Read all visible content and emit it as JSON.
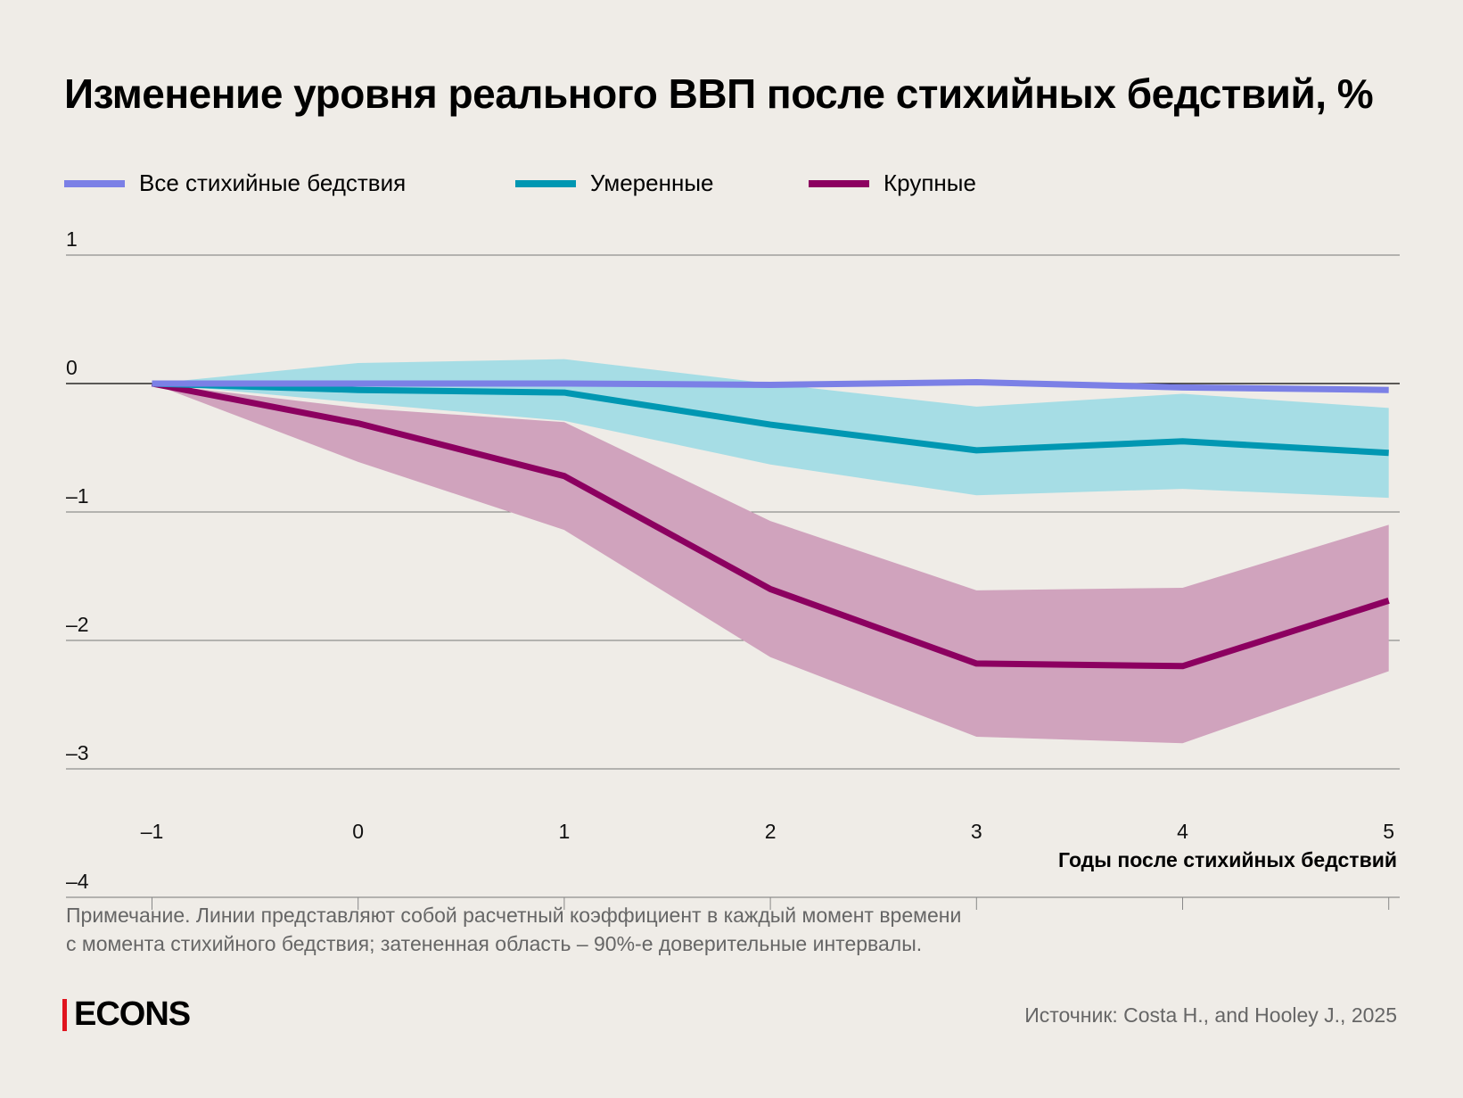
{
  "chart_data": {
    "type": "line",
    "title": "Изменение уровня реального ВВП после стихийных бедствий, %",
    "xlabel": "Годы после стихийных бедствий",
    "ylabel": "",
    "x": [
      -1,
      0,
      1,
      2,
      3,
      4,
      5
    ],
    "xlim": [
      -1.4,
      5.05
    ],
    "ylim": [
      -4,
      1
    ],
    "yticks": [
      1,
      0,
      -1,
      -2,
      -3,
      -4
    ],
    "ytick_labels": [
      "1",
      "0",
      "–1",
      "–2",
      "–3",
      "–4"
    ],
    "xtick_labels": [
      "–1",
      "0",
      "1",
      "2",
      "3",
      "4",
      "5"
    ],
    "grid": true,
    "legend_position": "top-left",
    "series": [
      {
        "name": "Все стихийные бедствия",
        "color": "#7b80e6",
        "values": [
          0,
          0,
          0,
          -0.01,
          0.01,
          -0.03,
          -0.05
        ]
      },
      {
        "name": "Умеренные",
        "color": "#0097b2",
        "band_color": "#9ddbe4",
        "values": [
          0,
          -0.05,
          -0.07,
          -0.32,
          -0.52,
          -0.45,
          -0.54
        ],
        "upper": [
          0,
          0.16,
          0.19,
          0.0,
          -0.18,
          -0.08,
          -0.19
        ],
        "lower": [
          0,
          -0.15,
          -0.29,
          -0.63,
          -0.87,
          -0.82,
          -0.89
        ]
      },
      {
        "name": "Крупные",
        "color": "#8c0060",
        "band_color": "#d0a3bd",
        "values": [
          0,
          -0.31,
          -0.72,
          -1.6,
          -2.18,
          -2.2,
          -1.69
        ],
        "upper": [
          0,
          -0.19,
          -0.3,
          -1.07,
          -1.61,
          -1.59,
          -1.1
        ],
        "lower": [
          0,
          -0.61,
          -1.14,
          -2.13,
          -2.75,
          -2.8,
          -2.24
        ]
      }
    ]
  },
  "note": [
    "Примечание. Линии представляют собой расчетный коэффициент в каждый момент времени",
    "с момента стихийного бедствия; затененная область – 90%-е доверительные интервалы."
  ],
  "logo": "ECONS",
  "source": "Источник: Costa H., and Hooley J., 2025"
}
